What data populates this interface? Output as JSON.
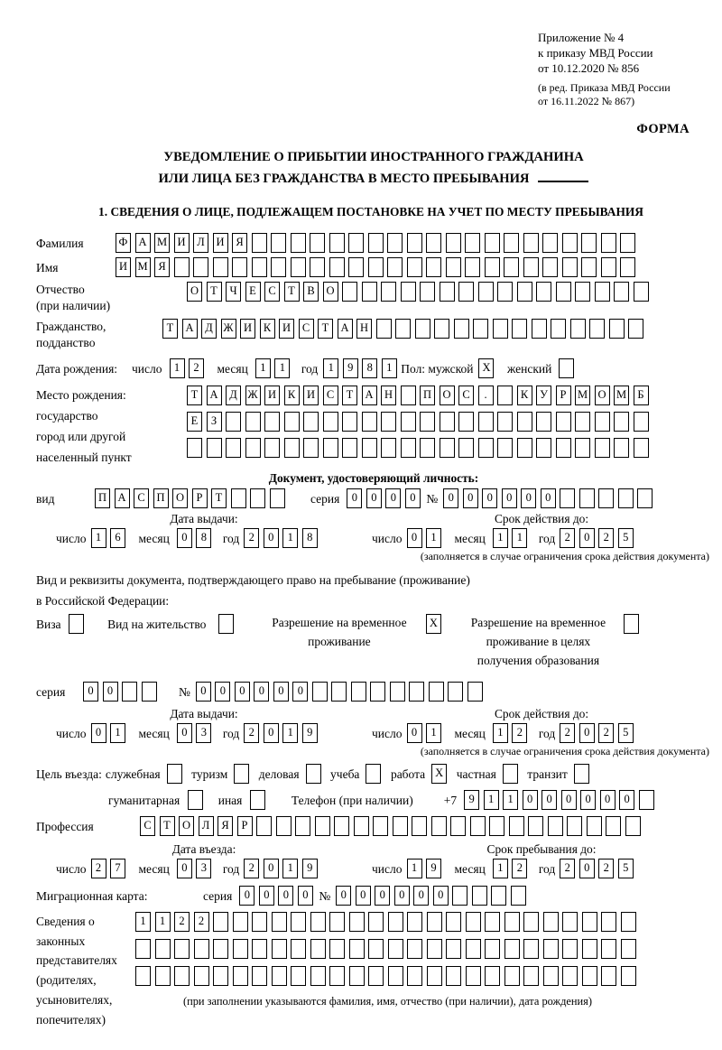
{
  "labels": {
    "day": "число",
    "month": "месяц",
    "year": "год",
    "seriya": "серия",
    "no": "№"
  },
  "header": {
    "appendix_lines": [
      "Приложение № 4",
      "к приказу МВД России",
      "от 10.12.2020 № 856"
    ],
    "edition_lines": [
      "(в ред. Приказа МВД России",
      "от 16.11.2022 № 867)"
    ],
    "forma": "ФОРМА"
  },
  "title": {
    "line1": "УВЕДОМЛЕНИЕ О ПРИБЫТИИ ИНОСТРАННОГО ГРАЖДАНИНА",
    "line2": "ИЛИ ЛИЦА БЕЗ ГРАЖДАНСТВА В МЕСТО ПРЕБЫВАНИЯ"
  },
  "section1": {
    "heading": "1. СВЕДЕНИЯ О ЛИЦЕ, ПОДЛЕЖАЩЕМ ПОСТАНОВКЕ НА УЧЕТ ПО МЕСТУ ПРЕБЫВАНИЯ"
  },
  "surname": {
    "label": "Фамилия",
    "value": "ФАМИЛИЯ"
  },
  "given_name": {
    "label": "Имя",
    "value": "ИМЯ"
  },
  "patronymic": {
    "label_line1": "Отчество",
    "label_line2": "(при наличии)",
    "value": "ОТЧЕСТВО"
  },
  "citizenship": {
    "label_line1": "Гражданство,",
    "label_line2": "подданство",
    "value": "ТАДЖИКИСТАН"
  },
  "birth_date": {
    "label": "Дата рождения:",
    "day": "12",
    "month": "11",
    "year": "1981",
    "sex_label": "Пол: мужской",
    "male_mark": "X",
    "female_label": "женский",
    "female_mark": ""
  },
  "birth_place": {
    "label_lines": [
      "Место рождения:",
      "государство",
      "город или другой",
      "населенный пункт"
    ],
    "row1": "ТАДЖИКИСТАН ПОС. КУРМОМБ",
    "row2": "ЕЗ",
    "row3": ""
  },
  "identity_doc": {
    "heading": "Документ, удостоверяющий личность:",
    "kind_label": "вид",
    "kind": "ПАСПОРТ",
    "series": "0000",
    "number": "000000",
    "issue_heading": "Дата выдачи:",
    "issue_day": "16",
    "issue_month": "08",
    "issue_year": "2018",
    "expiry_heading": "Срок действия до:",
    "expiry_day": "01",
    "expiry_month": "11",
    "expiry_year": "2025",
    "note": "(заполняется в случае ограничения срока действия документа)"
  },
  "stay_doc": {
    "intro_line1": "Вид и реквизиты документа, подтверждающего право на пребывание (проживание)",
    "intro_line2": "в Российской Федерации:",
    "options": [
      {
        "label": "Виза",
        "mark": ""
      },
      {
        "label": "Вид на жительство",
        "mark": ""
      },
      {
        "label": "Разрешение на временное проживание",
        "mark": "X"
      },
      {
        "label": "Разрешение на временное проживание в целях получения образования",
        "mark": ""
      }
    ],
    "series": "00",
    "number": "000000",
    "issue_heading": "Дата выдачи:",
    "issue_day": "01",
    "issue_month": "03",
    "issue_year": "2019",
    "expiry_heading": "Срок действия до:",
    "expiry_day": "01",
    "expiry_month": "12",
    "expiry_year": "2025",
    "note": "(заполняется в случае ограничения срока действия документа)"
  },
  "visit_purpose": {
    "label": "Цель въезда:",
    "options_row1": [
      {
        "label": "служебная",
        "mark": ""
      },
      {
        "label": "туризм",
        "mark": ""
      },
      {
        "label": "деловая",
        "mark": ""
      },
      {
        "label": "учеба",
        "mark": ""
      },
      {
        "label": "работа",
        "mark": "X"
      },
      {
        "label": "частная",
        "mark": ""
      },
      {
        "label": "транзит",
        "mark": ""
      }
    ],
    "options_row2": [
      {
        "label": "гуманитарная",
        "mark": ""
      },
      {
        "label": "иная",
        "mark": ""
      }
    ],
    "phone_label": "Телефон (при наличии)",
    "phone_prefix": "+7",
    "phone": "911000000"
  },
  "profession": {
    "label": "Профессия",
    "value": "СТОЛЯР"
  },
  "entry": {
    "date_heading": "Дата въезда:",
    "day": "27",
    "month": "03",
    "year": "2019",
    "until_heading": "Срок пребывания до:",
    "until_day": "19",
    "until_month": "12",
    "until_year": "2025"
  },
  "migration_card": {
    "label": "Миграционная карта:",
    "series": "0000",
    "number": "000000"
  },
  "representatives": {
    "label_lines": [
      "Сведения о",
      "законных",
      "представителях",
      "(родителях,",
      "усыновителях,",
      "попечителях)"
    ],
    "row1": "1122",
    "row2": "",
    "row3": "",
    "note": "(при заполнении указываются фамилия, имя, отчество (при наличии), дата рождения)"
  }
}
